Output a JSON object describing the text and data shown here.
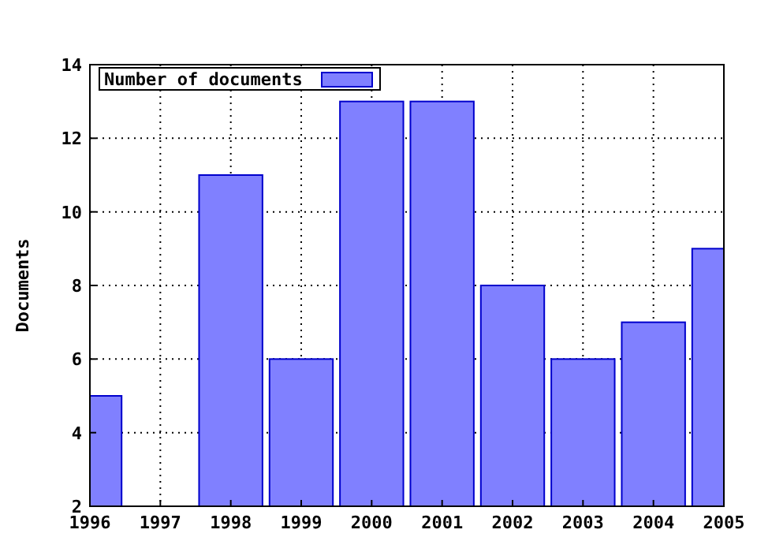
{
  "chart_data": {
    "type": "bar",
    "ylabel": "Documents",
    "x": [
      1996,
      1997,
      1998,
      1999,
      2000,
      2001,
      2002,
      2003,
      2004,
      2005
    ],
    "series": [
      {
        "name": "Number of documents",
        "color": "#8080ff",
        "values": [
          5,
          2,
          11,
          6,
          13,
          13,
          8,
          6,
          7,
          9
        ]
      }
    ],
    "xlim": [
      1996,
      2005
    ],
    "xticks": [
      1996,
      1997,
      1998,
      1999,
      2000,
      2001,
      2002,
      2003,
      2004,
      2005
    ],
    "ylim": [
      2,
      14
    ],
    "yticks": [
      2,
      4,
      6,
      8,
      10,
      12,
      14
    ],
    "grid": true,
    "legend": "top left"
  }
}
